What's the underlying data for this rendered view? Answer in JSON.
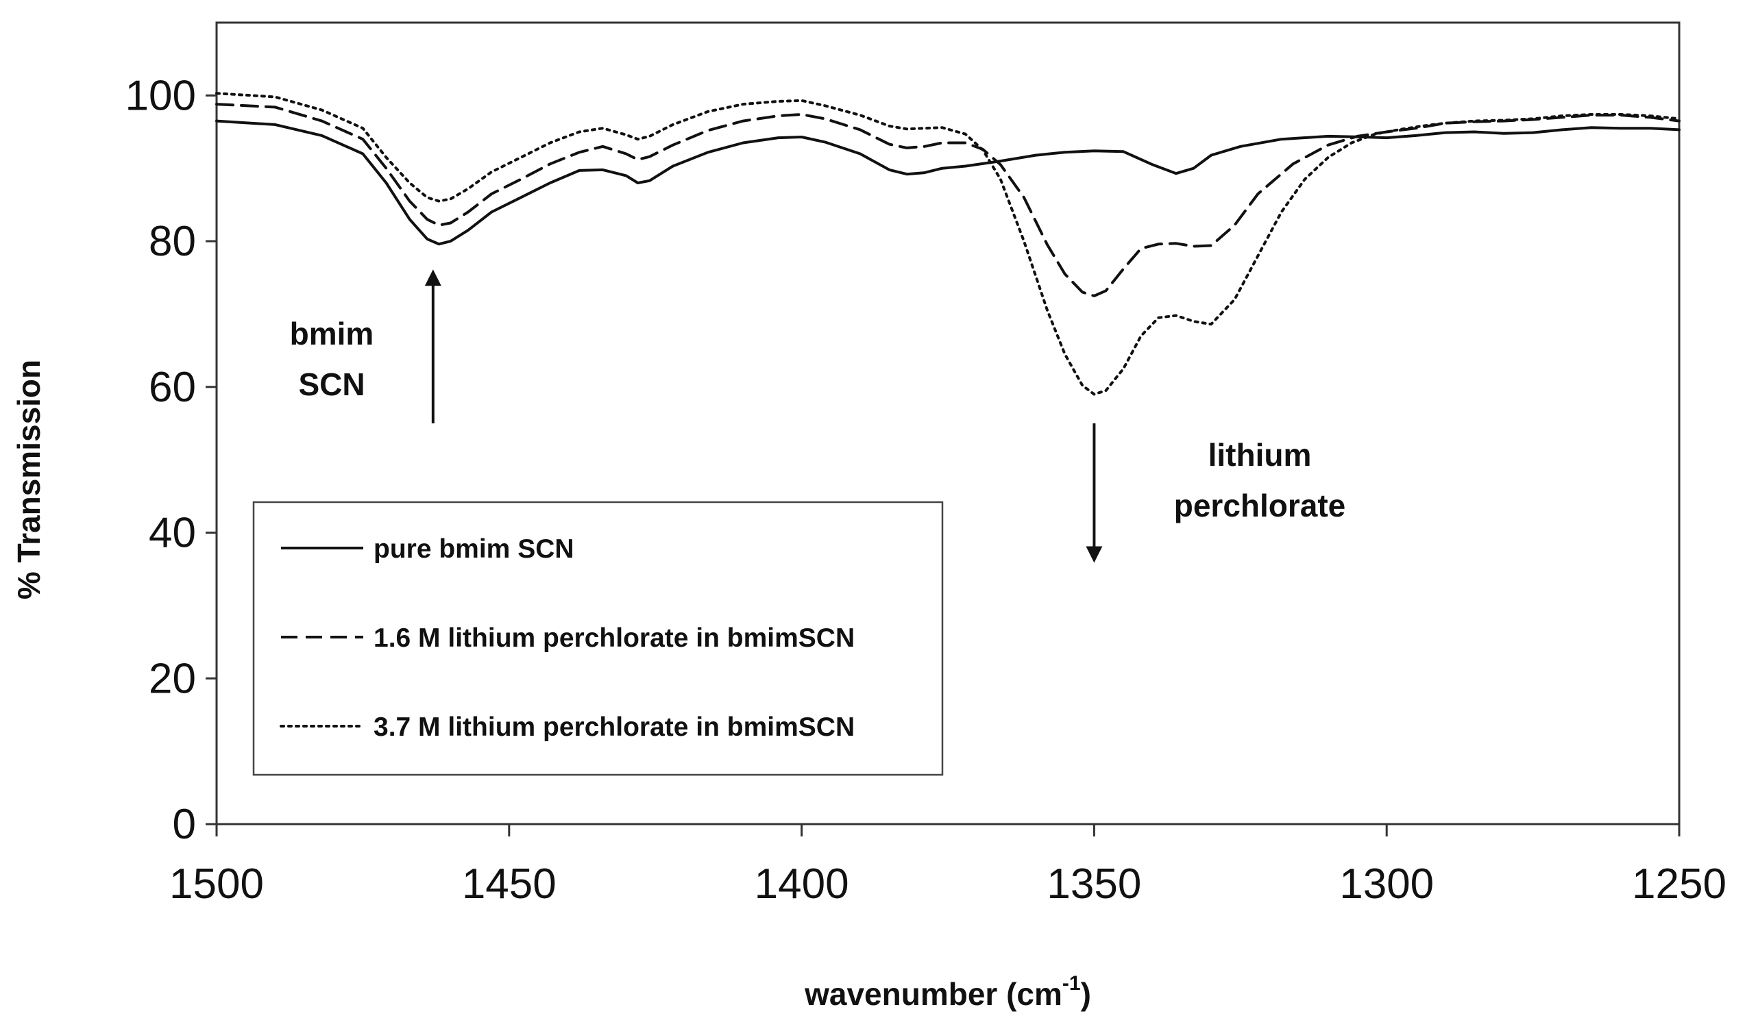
{
  "chart_data": {
    "type": "line",
    "title": "",
    "xlabel": "wavenumber (cm",
    "xlabel_sup": "-1",
    "xlabel_close": ")",
    "ylabel": "% Transmission",
    "xlim": [
      1500,
      1250
    ],
    "ylim": [
      0,
      110
    ],
    "x_reversed": true,
    "x_ticks": [
      1500,
      1450,
      1400,
      1350,
      1300,
      1250
    ],
    "x_tick_labels": [
      "1500",
      "1450",
      "1400",
      "1350",
      "1300",
      "1250"
    ],
    "y_ticks": [
      0,
      20,
      40,
      60,
      80,
      100
    ],
    "y_tick_labels": [
      "0",
      "20",
      "40",
      "60",
      "80",
      "100"
    ],
    "grid": false,
    "legend_position": "lower-left inside plot",
    "series": [
      {
        "name": "pure bmim SCN",
        "style": "solid",
        "x": [
          1500,
          1490,
          1482,
          1475,
          1471,
          1467,
          1464,
          1462,
          1460,
          1457,
          1453,
          1448,
          1443,
          1438,
          1434,
          1430,
          1428,
          1426,
          1422,
          1416,
          1410,
          1404,
          1400,
          1396,
          1390,
          1385,
          1382,
          1379,
          1376,
          1372,
          1366,
          1360,
          1355,
          1350,
          1345,
          1340,
          1336,
          1333,
          1330,
          1325,
          1318,
          1310,
          1304,
          1300,
          1295,
          1290,
          1285,
          1280,
          1275,
          1270,
          1265,
          1260,
          1255,
          1250
        ],
        "y": [
          96.5,
          96,
          94.5,
          92,
          88,
          83,
          80.3,
          79.6,
          80,
          81.5,
          84,
          86,
          88,
          89.7,
          89.8,
          89,
          88,
          88.3,
          90.3,
          92.2,
          93.5,
          94.2,
          94.3,
          93.6,
          92,
          89.8,
          89.2,
          89.4,
          90,
          90.3,
          91,
          91.8,
          92.2,
          92.4,
          92.3,
          90.5,
          89.3,
          90,
          91.8,
          93,
          94,
          94.4,
          94.3,
          94.2,
          94.5,
          94.9,
          95,
          94.8,
          94.9,
          95.3,
          95.6,
          95.5,
          95.5,
          95.3
        ]
      },
      {
        "name": "1.6 M lithium perchlorate in bmimSCN",
        "style": "dashed",
        "x": [
          1500,
          1490,
          1482,
          1475,
          1471,
          1467,
          1464,
          1462,
          1460,
          1457,
          1453,
          1448,
          1443,
          1438,
          1434,
          1430,
          1428,
          1426,
          1422,
          1416,
          1410,
          1404,
          1400,
          1396,
          1390,
          1385,
          1382,
          1379,
          1376,
          1372,
          1369,
          1366,
          1362,
          1358,
          1355,
          1352,
          1350,
          1348,
          1345,
          1342,
          1339,
          1336,
          1333,
          1330,
          1326,
          1322,
          1316,
          1310,
          1305,
          1300,
          1295,
          1290,
          1285,
          1280,
          1275,
          1270,
          1265,
          1260,
          1255,
          1250
        ],
        "y": [
          98.8,
          98.4,
          96.5,
          94,
          90,
          85.5,
          83,
          82.2,
          82.5,
          84,
          86.5,
          88.5,
          90.6,
          92.2,
          93,
          92,
          91.2,
          91.6,
          93.2,
          95.2,
          96.5,
          97.2,
          97.4,
          96.8,
          95.3,
          93.3,
          92.8,
          93,
          93.5,
          93.5,
          92.6,
          90.5,
          86,
          79.5,
          75.5,
          73,
          72.5,
          73.2,
          76.2,
          79,
          79.6,
          79.7,
          79.3,
          79.4,
          82.2,
          86.5,
          90.6,
          93.2,
          94.4,
          95,
          95.5,
          96.2,
          96.4,
          96.5,
          96.7,
          97,
          97.3,
          97.3,
          97,
          96.5
        ]
      },
      {
        "name": "3.7 M lithium perchlorate in bmimSCN",
        "style": "dotted",
        "x": [
          1500,
          1490,
          1482,
          1475,
          1471,
          1467,
          1464,
          1462,
          1460,
          1457,
          1453,
          1448,
          1443,
          1438,
          1434,
          1430,
          1428,
          1426,
          1422,
          1416,
          1410,
          1404,
          1400,
          1396,
          1390,
          1385,
          1382,
          1379,
          1376,
          1372,
          1369,
          1366,
          1362,
          1358,
          1355,
          1352,
          1350,
          1348,
          1345,
          1342,
          1339,
          1336,
          1333,
          1330,
          1326,
          1322,
          1318,
          1314,
          1310,
          1306,
          1302,
          1298,
          1294,
          1290,
          1285,
          1280,
          1275,
          1270,
          1265,
          1260,
          1255,
          1250
        ],
        "y": [
          100.3,
          99.8,
          98,
          95.5,
          91.5,
          88,
          86,
          85.5,
          85.8,
          87.2,
          89.5,
          91.5,
          93.5,
          95,
          95.5,
          94.6,
          94,
          94.4,
          96,
          97.8,
          98.8,
          99.2,
          99.3,
          98.6,
          97.3,
          95.8,
          95.4,
          95.5,
          95.6,
          94.7,
          92.5,
          88.5,
          80,
          70.5,
          64.5,
          60.2,
          59,
          59.5,
          62.5,
          67,
          69.5,
          69.8,
          69,
          68.6,
          72,
          78,
          84,
          88.5,
          91.5,
          93.5,
          94.7,
          95.3,
          95.8,
          96.2,
          96.5,
          96.6,
          96.8,
          97.2,
          97.4,
          97.4,
          97.2,
          96.8
        ]
      }
    ],
    "annotations": [
      {
        "id": "bmim",
        "lines": [
          "bmim",
          "SCN"
        ],
        "arrow": "up",
        "arrow_x": 1463,
        "arrow_from_y": 55,
        "arrow_to_y": 75
      },
      {
        "id": "licl",
        "lines": [
          "lithium",
          "perchlorate"
        ],
        "arrow": "down",
        "arrow_x": 1350,
        "arrow_from_y": 55,
        "arrow_to_y": 37
      }
    ]
  }
}
